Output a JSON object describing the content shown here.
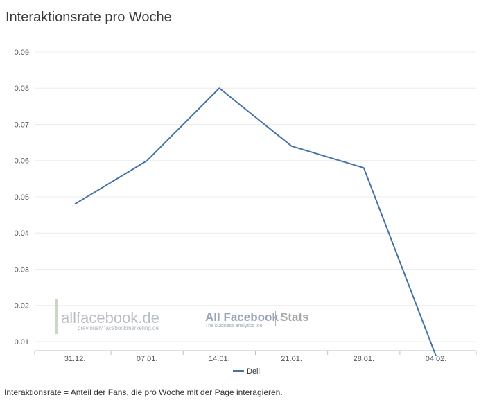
{
  "title": "Interaktionsrate pro Woche",
  "footnote": "Interaktionsrate = Anteil der Fans, die pro Woche mit der Page interagieren.",
  "watermark": {
    "left_main": "allfacebook.de",
    "left_sub": "previously facebookmarketing.de",
    "right_main": "All Facebook",
    "right_stats": "Stats",
    "right_sub": "The business analytics tool"
  },
  "colors": {
    "series": "#4572a7",
    "grid": "#ececec",
    "axis": "#c0c0c0",
    "tick_text": "#555555"
  },
  "chart_data": {
    "type": "line",
    "title": "",
    "xlabel": "",
    "ylabel": "",
    "categories": [
      "31.12.",
      "07.01.",
      "14.01.",
      "21.01.",
      "28.01.",
      "04.02."
    ],
    "y_ticks": [
      "0.01",
      "0.02",
      "0.03",
      "0.04",
      "0.05",
      "0.06",
      "0.07",
      "0.08",
      "0.09"
    ],
    "ylim": [
      0.0075,
      0.09
    ],
    "grid": true,
    "legend_position": "bottom",
    "series": [
      {
        "name": "Dell",
        "values": [
          0.048,
          0.06,
          0.08,
          0.064,
          0.058,
          0.006
        ]
      }
    ]
  }
}
